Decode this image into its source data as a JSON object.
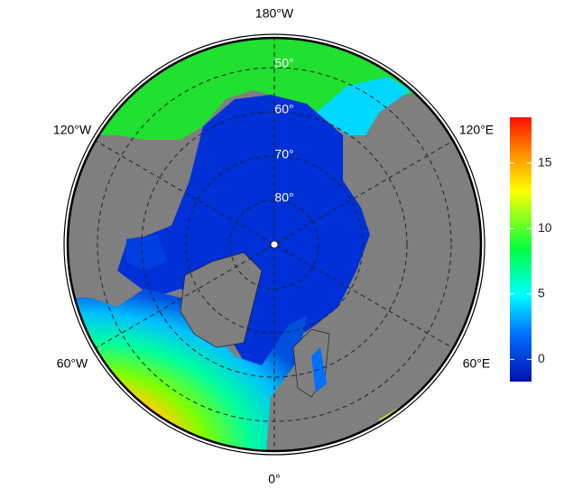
{
  "map": {
    "longitude_labels": [
      "180°W",
      "120°W",
      "120°E",
      "60°W",
      "60°E",
      "0°"
    ],
    "latitude_labels": [
      "50°",
      "60°",
      "70°",
      "80°"
    ],
    "colorbar": {
      "lim": [
        -1.7,
        18.5
      ],
      "ticks": [
        0,
        5,
        10,
        15
      ]
    }
  }
}
